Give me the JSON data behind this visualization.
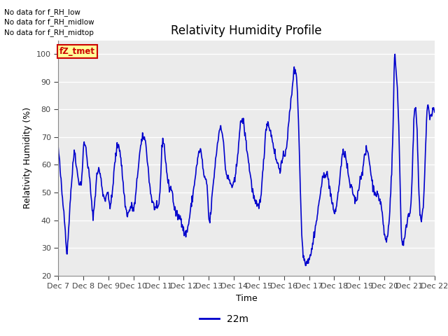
{
  "title": "Relativity Humidity Profile",
  "ylabel": "Relativity Humidity (%)",
  "xlabel": "Time",
  "ylim": [
    20,
    105
  ],
  "yticks": [
    20,
    30,
    40,
    50,
    60,
    70,
    80,
    90,
    100
  ],
  "line_color": "#0000CC",
  "line_width": 1.2,
  "bg_color": "#EBEBEB",
  "annotations": [
    "No data for f_RH_low",
    "No data for f_RH_midlow",
    "No data for f_RH_midtop"
  ],
  "legend_label": "22m",
  "legend_color": "#0000CC",
  "xtick_labels": [
    "Dec 7",
    "Dec 8",
    "Dec 9",
    "Dec 10",
    "Dec 11",
    "Dec 12",
    "Dec 13",
    "Dec 14",
    "Dec 15",
    "Dec 16",
    "Dec 17",
    "Dec 18",
    "Dec 19",
    "Dec 20",
    "Dec 21",
    "Dec 22"
  ],
  "fz_tmet_color": "#CC0000",
  "fz_tmet_bg": "#FFFF99",
  "title_fontsize": 12,
  "axis_fontsize": 9,
  "tick_fontsize": 8
}
